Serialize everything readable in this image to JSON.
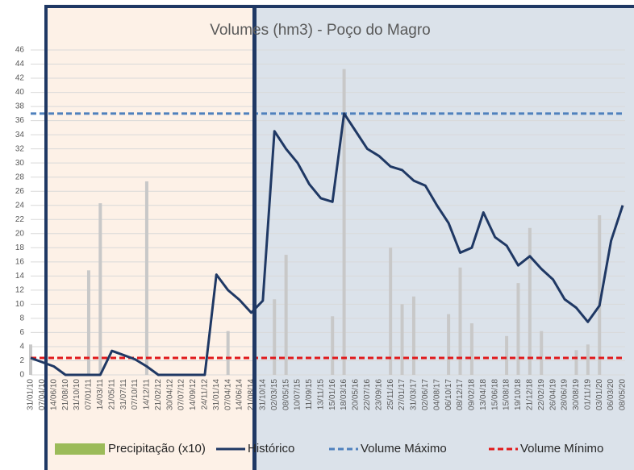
{
  "chart_data": {
    "type": "line",
    "title": "Volumes (hm3) - Poço do Magro",
    "categories": [
      "31/01/10",
      "07/04/10",
      "14/06/10",
      "21/08/10",
      "31/10/10",
      "07/01/11",
      "14/03/11",
      "21/05/11",
      "31/07/11",
      "07/10/11",
      "14/12/11",
      "21/02/12",
      "30/04/12",
      "07/07/12",
      "14/09/12",
      "24/11/12",
      "31/01/14",
      "07/04/14",
      "14/06/14",
      "21/08/14",
      "31/10/14",
      "02/03/15",
      "08/05/15",
      "10/07/15",
      "11/09/15",
      "13/11/15",
      "15/01/16",
      "18/03/16",
      "20/05/16",
      "22/07/16",
      "23/09/16",
      "25/11/16",
      "27/01/17",
      "31/03/17",
      "02/06/17",
      "04/08/17",
      "06/10/17",
      "08/12/17",
      "09/02/18",
      "13/04/18",
      "15/06/18",
      "15/08/18",
      "19/10/18",
      "21/12/18",
      "22/02/19",
      "26/04/19",
      "28/06/19",
      "30/08/19",
      "01/11/19",
      "03/01/20",
      "06/03/20",
      "08/05/20"
    ],
    "series": [
      {
        "name": "Precipitação (x10)",
        "type": "bar",
        "color": "#c8c8c8",
        "legend_color": "#9bbb59",
        "values": [
          4.3,
          0,
          0,
          0,
          0,
          14.8,
          24.3,
          0,
          0,
          0,
          27.4,
          0,
          0,
          0,
          0,
          0,
          0,
          6.2,
          0,
          0,
          0,
          10.7,
          17,
          0,
          0,
          0,
          8.3,
          43.3,
          0,
          0,
          0,
          18,
          10,
          11.1,
          0,
          0,
          8.6,
          15.2,
          7.3,
          0,
          0,
          5.5,
          13,
          20.8,
          6.2,
          0,
          0,
          3.5,
          4.3,
          22.6,
          0,
          0
        ]
      },
      {
        "name": "Histórico",
        "type": "line",
        "color": "#1f3864",
        "values": [
          2.4,
          1.8,
          1.2,
          0,
          0,
          0,
          0,
          3.4,
          2.8,
          2.2,
          1.2,
          0,
          0,
          0,
          0,
          0,
          14.2,
          12,
          10.6,
          8.8,
          10.5,
          34.5,
          32,
          30,
          27,
          25,
          24.5,
          37,
          34.5,
          32,
          31,
          29.5,
          29,
          27.5,
          26.8,
          24,
          21.5,
          17.3,
          18,
          23,
          19.5,
          18.3,
          15.5,
          16.8,
          15,
          13.5,
          10.7,
          9.5,
          7.5,
          9.8,
          19,
          24
        ]
      }
    ],
    "reference_lines": [
      {
        "name": "Volume Máximo",
        "value": 37,
        "color": "#4f81bd"
      },
      {
        "name": "Volume Mínimo",
        "value": 2.4,
        "color": "#e0191b"
      }
    ],
    "ylim": [
      0,
      46
    ],
    "yticks": [
      0,
      2,
      4,
      6,
      8,
      10,
      12,
      14,
      16,
      18,
      20,
      22,
      24,
      26,
      28,
      30,
      32,
      34,
      36,
      38,
      40,
      42,
      44,
      46
    ],
    "grid": true
  }
}
